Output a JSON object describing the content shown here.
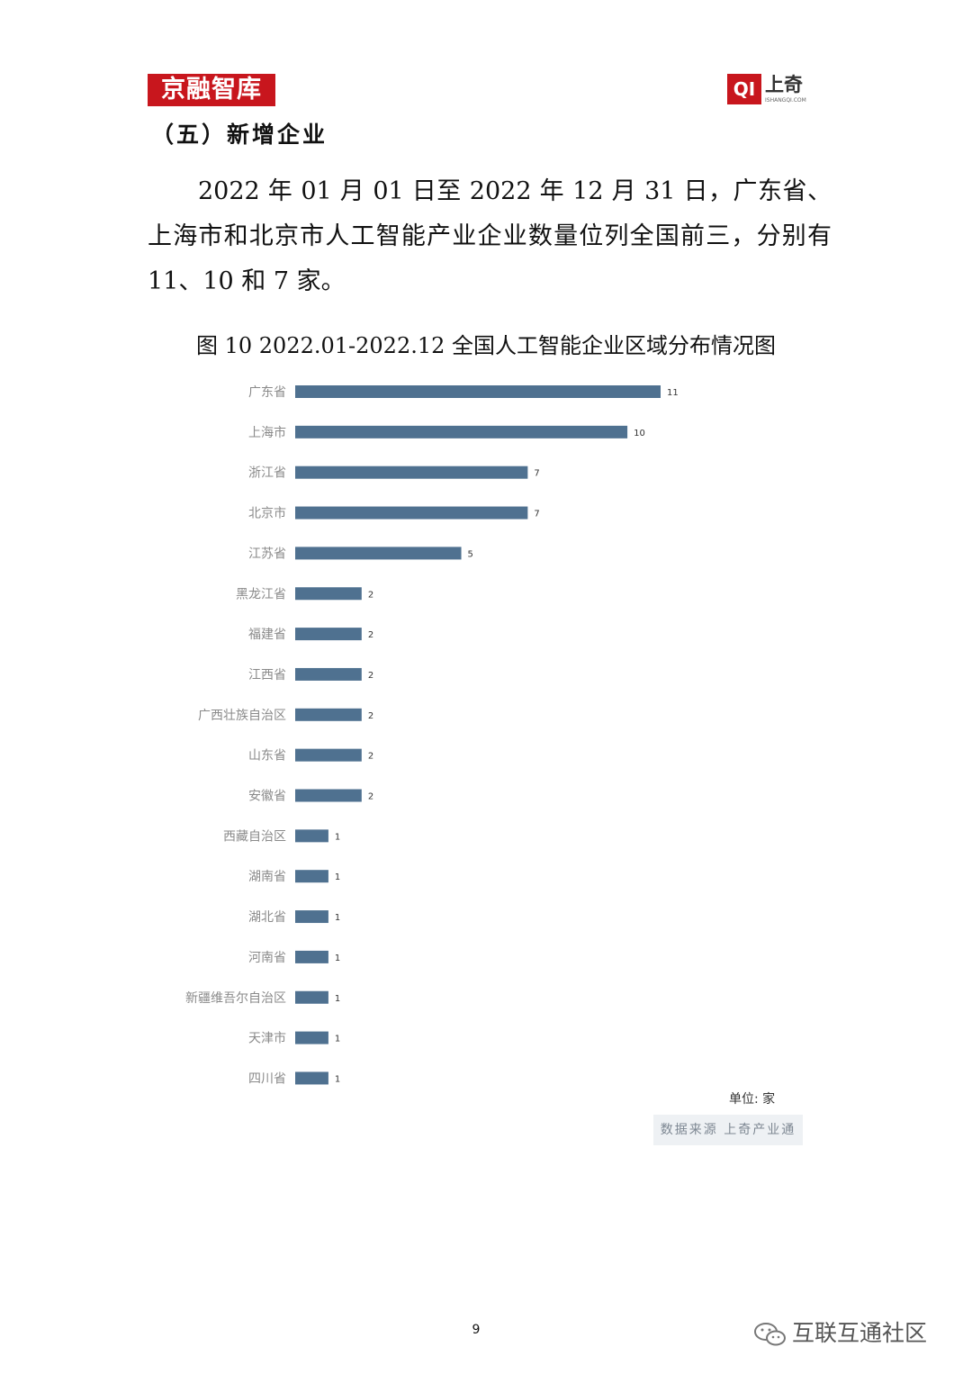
{
  "header": {
    "logo_left_text": "京融智库",
    "logo_right_mark": "QI",
    "logo_right_name": "上奇",
    "logo_right_url": "ISHANGQI.COM"
  },
  "section_title": "（五）新增企业",
  "paragraph": "2022 年 01 月 01 日至 2022 年 12 月 31 日，广东省、上海市和北京市人工智能产业企业数量位列全国前三，分别有 11、10 和 7 家。",
  "chart_title": "图 10 2022.01-2022.12 全国人工智能企业区域分布情况图",
  "unit": "单位: 家",
  "source": "数据来源 上奇产业通",
  "page_number": "9",
  "watermark": {
    "icon": "wechat-icon",
    "text": "互联互通社区"
  },
  "colors": {
    "bar": "#4f7190",
    "logo_red": "#c8161d"
  },
  "chart_data": {
    "type": "bar",
    "orientation": "horizontal",
    "categories": [
      "广东省",
      "上海市",
      "浙江省",
      "北京市",
      "江苏省",
      "黑龙江省",
      "福建省",
      "江西省",
      "广西壮族自治区",
      "山东省",
      "安徽省",
      "西藏自治区",
      "湖南省",
      "湖北省",
      "河南省",
      "新疆维吾尔自治区",
      "天津市",
      "四川省"
    ],
    "values": [
      11,
      10,
      7,
      7,
      5,
      2,
      2,
      2,
      2,
      2,
      2,
      1,
      1,
      1,
      1,
      1,
      1,
      1
    ],
    "title": "图 10 2022.01-2022.12 全国人工智能企业区域分布情况图",
    "xlabel": "",
    "ylabel": "",
    "xlim": [
      0,
      11
    ],
    "data_labels": true,
    "grid": false
  }
}
